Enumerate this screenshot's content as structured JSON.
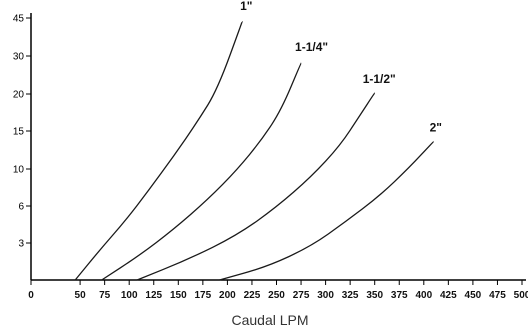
{
  "chart_data": {
    "type": "line",
    "title": "",
    "xlabel": "Caudal LPM",
    "ylabel": "",
    "x_ticks": [
      0,
      50,
      75,
      100,
      125,
      150,
      175,
      200,
      225,
      250,
      275,
      300,
      325,
      350,
      375,
      400,
      425,
      450,
      475,
      500
    ],
    "y_ticks": [
      "3",
      "6",
      "10",
      "15",
      "20",
      "30",
      "45"
    ],
    "xlim": [
      0,
      500
    ],
    "grid": false,
    "series": [
      {
        "name": "1\"",
        "points": [
          [
            45,
            0.0
          ],
          [
            70,
            0.8
          ],
          [
            95,
            1.55
          ],
          [
            120,
            2.4
          ],
          [
            145,
            3.3
          ],
          [
            170,
            4.25
          ],
          [
            190,
            5.1
          ],
          [
            215,
            6.9
          ]
        ]
      },
      {
        "name": "1-1/4\"",
        "points": [
          [
            72,
            0.0
          ],
          [
            110,
            0.65
          ],
          [
            145,
            1.35
          ],
          [
            180,
            2.15
          ],
          [
            210,
            2.95
          ],
          [
            235,
            3.75
          ],
          [
            255,
            4.55
          ],
          [
            275,
            5.8
          ]
        ]
      },
      {
        "name": "1-1/2\"",
        "points": [
          [
            108,
            0.0
          ],
          [
            160,
            0.55
          ],
          [
            210,
            1.2
          ],
          [
            250,
            1.95
          ],
          [
            285,
            2.75
          ],
          [
            315,
            3.6
          ],
          [
            335,
            4.4
          ],
          [
            350,
            5.0
          ]
        ]
      },
      {
        "name": "2\"",
        "points": [
          [
            192,
            0.0
          ],
          [
            240,
            0.35
          ],
          [
            285,
            0.9
          ],
          [
            320,
            1.55
          ],
          [
            355,
            2.25
          ],
          [
            385,
            3.0
          ],
          [
            410,
            3.7
          ]
        ]
      }
    ]
  }
}
